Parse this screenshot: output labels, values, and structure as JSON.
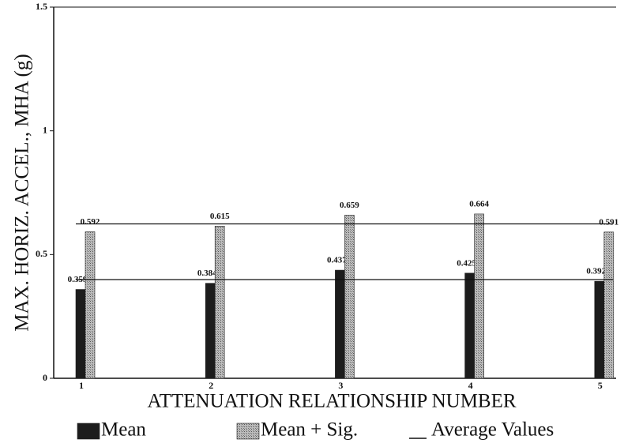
{
  "chart_data": {
    "type": "bar",
    "y_label": "MAX. HORIZ. ACCEL., MHA (g)",
    "x_label": "ATTENUATION RELATIONSHIP NUMBER",
    "categories": [
      "1",
      "2",
      "3",
      "4",
      "5"
    ],
    "series": [
      {
        "name": "Mean",
        "color": "#1c1c1c",
        "values": [
          0.359,
          0.384,
          0.437,
          0.425,
          0.392
        ]
      },
      {
        "name": "Mean + Sig.",
        "color": "#a9a9a9",
        "values": [
          0.592,
          0.615,
          0.659,
          0.664,
          0.591
        ]
      }
    ],
    "reference_lines": [
      {
        "value": 0.399
      },
      {
        "value": 0.624
      }
    ],
    "reference_legend": "Average Values",
    "ylim": [
      0,
      1.5
    ],
    "yticks": [
      0,
      0.5,
      1,
      1.5
    ]
  }
}
